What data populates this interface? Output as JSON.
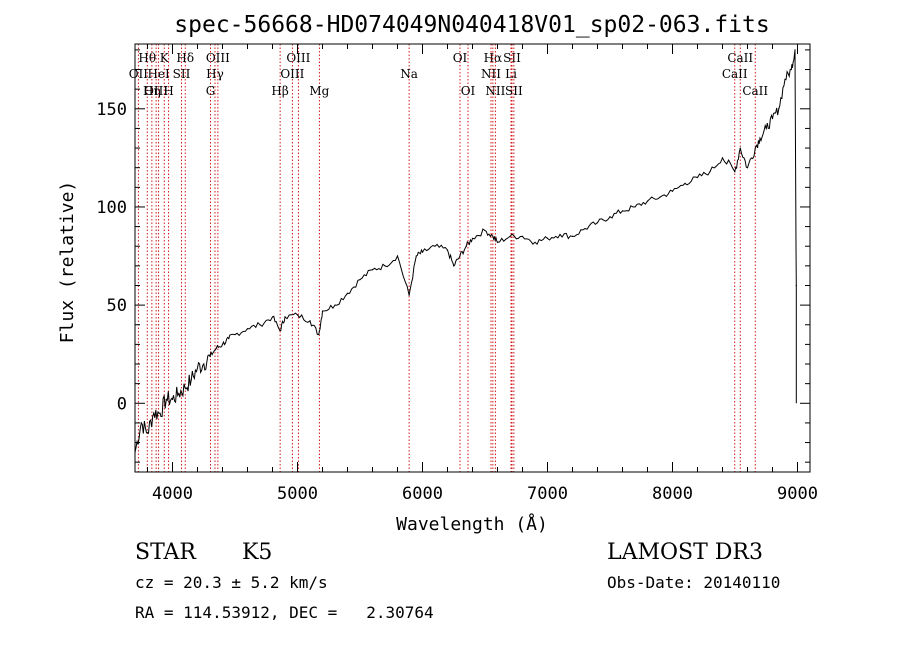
{
  "chart_data": {
    "type": "line",
    "title": "spec-56668-HD074049N040418V01_sp02-063.fits",
    "xlabel": "Wavelength (Å)",
    "ylabel": "Flux (relative)",
    "xlim": [
      3700,
      9100
    ],
    "ylim": [
      -35,
      183
    ],
    "xticks": [
      4000,
      5000,
      6000,
      7000,
      8000,
      9000
    ],
    "yticks": [
      0,
      50,
      100,
      150
    ],
    "grid": false,
    "x": [
      3700,
      3750,
      3800,
      3850,
      3900,
      3950,
      4000,
      4050,
      4100,
      4150,
      4200,
      4250,
      4300,
      4350,
      4400,
      4450,
      4500,
      4600,
      4700,
      4800,
      4860,
      4900,
      5000,
      5100,
      5170,
      5200,
      5300,
      5400,
      5500,
      5600,
      5700,
      5800,
      5893,
      5950,
      6000,
      6100,
      6200,
      6250,
      6300,
      6350,
      6400,
      6500,
      6563,
      6600,
      6700,
      6800,
      6900,
      7000,
      7100,
      7200,
      7300,
      7400,
      7500,
      7600,
      7700,
      7800,
      7900,
      8000,
      8100,
      8200,
      8300,
      8400,
      8498,
      8542,
      8600,
      8662,
      8700,
      8750,
      8800,
      8850,
      8900,
      8950,
      8980,
      8990
    ],
    "y": [
      -25,
      -10,
      -15,
      -5,
      -5,
      2,
      2,
      5,
      8,
      12,
      18,
      20,
      24,
      28,
      30,
      33,
      35,
      38,
      40,
      44,
      37,
      44,
      45,
      42,
      35,
      47,
      50,
      56,
      63,
      68,
      70,
      75,
      55,
      75,
      77,
      80,
      78,
      70,
      75,
      80,
      84,
      88,
      85,
      82,
      85,
      85,
      82,
      84,
      86,
      85,
      89,
      92,
      95,
      98,
      100,
      103,
      105,
      108,
      112,
      115,
      118,
      125,
      118,
      130,
      120,
      130,
      135,
      140,
      145,
      150,
      165,
      170,
      180,
      60
    ],
    "series": [
      {
        "values_ref": "y",
        "color": "#000000"
      }
    ],
    "lines": [
      {
        "label": "Hθ",
        "x": 3798,
        "row": 1
      },
      {
        "label": "OII",
        "x": 3727,
        "row": 2
      },
      {
        "label": "OIII",
        "x": 3869,
        "row": 3
      },
      {
        "label": "Hη",
        "x": 3835,
        "row": 3
      },
      {
        "label": "K",
        "x": 3934,
        "row": 1
      },
      {
        "label": "HeI",
        "x": 3889,
        "row": 2
      },
      {
        "label": "SII",
        "x": 4072,
        "row": 2
      },
      {
        "label": "H",
        "x": 3969,
        "row": 3
      },
      {
        "label": "Hδ",
        "x": 4102,
        "row": 1
      },
      {
        "label": "OIII",
        "x": 4363,
        "row": 1
      },
      {
        "label": "Hγ",
        "x": 4340,
        "row": 2
      },
      {
        "label": "G",
        "x": 4304,
        "row": 3
      },
      {
        "label": "Hβ",
        "x": 4861,
        "row": 3
      },
      {
        "label": "OIII",
        "x": 5007,
        "row": 1
      },
      {
        "label": "OIII",
        "x": 4959,
        "row": 2
      },
      {
        "label": "Mg",
        "x": 5175,
        "row": 3
      },
      {
        "label": "Na",
        "x": 5893,
        "row": 2
      },
      {
        "label": "OI",
        "x": 6300,
        "row": 1
      },
      {
        "label": "OI",
        "x": 6364,
        "row": 3
      },
      {
        "label": "Hα",
        "x": 6563,
        "row": 1
      },
      {
        "label": "NII",
        "x": 6548,
        "row": 2
      },
      {
        "label": "NII",
        "x": 6583,
        "row": 3
      },
      {
        "label": "SII",
        "x": 6716,
        "row": 1
      },
      {
        "label": "Li",
        "x": 6708,
        "row": 2
      },
      {
        "label": "SII",
        "x": 6731,
        "row": 3
      },
      {
        "label": "CaII",
        "x": 8542,
        "row": 1
      },
      {
        "label": "CaII",
        "x": 8498,
        "row": 2
      },
      {
        "label": "CaII",
        "x": 8662,
        "row": 3
      }
    ],
    "line_color": "#cc0000"
  },
  "info": {
    "object_class": "STAR",
    "subclass": "K5",
    "survey": "LAMOST DR3",
    "redshift": "cz = 20.3 ± 5.2 km/s",
    "obs_date": "Obs-Date: 20140110",
    "coords": "RA = 114.53912, DEC =   2.30764"
  }
}
